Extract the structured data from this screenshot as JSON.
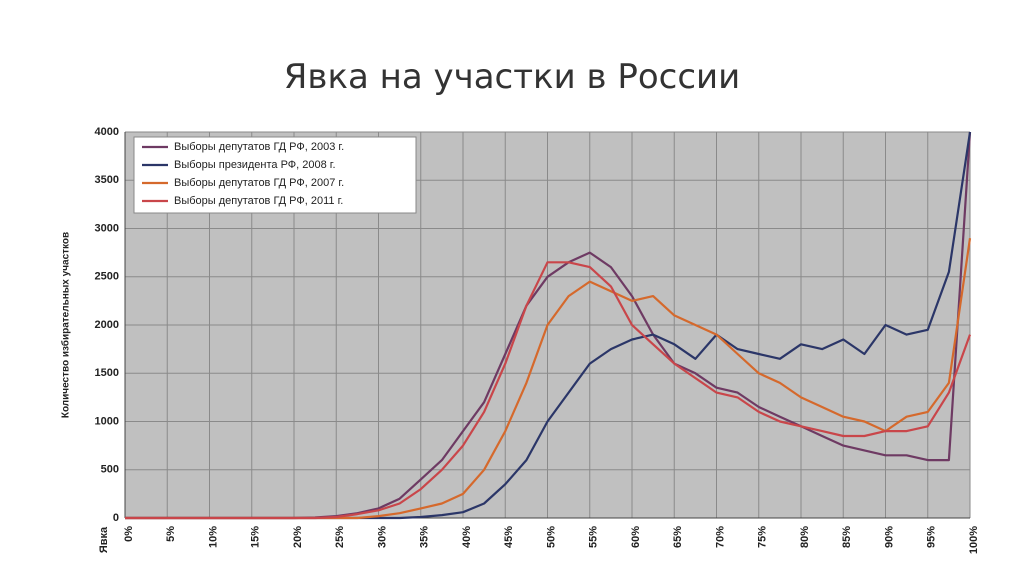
{
  "chart_data": {
    "type": "line",
    "title": "Явка на участки в России",
    "xlabel": "Явка",
    "ylabel": "Количество избирательных участков",
    "x": [
      0,
      2.5,
      5,
      7.5,
      10,
      12.5,
      15,
      17.5,
      20,
      22.5,
      25,
      27.5,
      30,
      32.5,
      35,
      37.5,
      40,
      42.5,
      45,
      47.5,
      50,
      52.5,
      55,
      57.5,
      60,
      62.5,
      65,
      67.5,
      70,
      72.5,
      75,
      77.5,
      80,
      82.5,
      85,
      87.5,
      90,
      92.5,
      95,
      97.5,
      100
    ],
    "series": [
      {
        "name": "Выборы депутатов ГД РФ, 2003 г.",
        "color": "#6e3a63",
        "values": [
          0,
          0,
          0,
          0,
          0,
          0,
          0,
          0,
          0,
          5,
          20,
          50,
          100,
          200,
          400,
          600,
          900,
          1200,
          1700,
          2200,
          2500,
          2650,
          2750,
          2600,
          2300,
          1900,
          1600,
          1500,
          1350,
          1300,
          1150,
          1050,
          950,
          850,
          750,
          700,
          650,
          650,
          600,
          600,
          4000
        ]
      },
      {
        "name": "Выборы президента РФ, 2008 г.",
        "color": "#2b3668",
        "values": [
          0,
          0,
          0,
          0,
          0,
          0,
          0,
          0,
          0,
          0,
          0,
          0,
          0,
          0,
          10,
          30,
          60,
          150,
          350,
          600,
          1000,
          1300,
          1600,
          1750,
          1850,
          1900,
          1800,
          1650,
          1900,
          1750,
          1700,
          1650,
          1800,
          1750,
          1850,
          1700,
          2000,
          1900,
          1950,
          2550,
          4000
        ]
      },
      {
        "name": "Выборы депутатов ГД РФ, 2007 г.",
        "color": "#d5692c",
        "values": [
          0,
          0,
          0,
          0,
          0,
          0,
          0,
          0,
          0,
          0,
          0,
          0,
          20,
          50,
          100,
          150,
          250,
          500,
          900,
          1400,
          2000,
          2300,
          2450,
          2350,
          2250,
          2300,
          2100,
          2000,
          1900,
          1700,
          1500,
          1400,
          1250,
          1150,
          1050,
          1000,
          900,
          1050,
          1100,
          1400,
          2900
        ]
      },
      {
        "name": "Выборы депутатов ГД РФ, 2011 г.",
        "color": "#c9464a",
        "values": [
          0,
          0,
          0,
          0,
          0,
          0,
          0,
          0,
          0,
          0,
          10,
          40,
          80,
          150,
          300,
          500,
          750,
          1100,
          1600,
          2200,
          2650,
          2650,
          2600,
          2400,
          2000,
          1800,
          1600,
          1450,
          1300,
          1250,
          1100,
          1000,
          950,
          900,
          850,
          850,
          900,
          900,
          950,
          1300,
          1900
        ]
      }
    ],
    "xlim": [
      0,
      100
    ],
    "xticks": [
      {
        "value": 0,
        "label": "0%"
      },
      {
        "value": 5,
        "label": "5%"
      },
      {
        "value": 10,
        "label": "10%"
      },
      {
        "value": 15,
        "label": "15%"
      },
      {
        "value": 20,
        "label": "20%"
      },
      {
        "value": 25,
        "label": "25%"
      },
      {
        "value": 30,
        "label": "30%"
      },
      {
        "value": 35,
        "label": "35%"
      },
      {
        "value": 40,
        "label": "40%"
      },
      {
        "value": 45,
        "label": "45%"
      },
      {
        "value": 50,
        "label": "50%"
      },
      {
        "value": 55,
        "label": "55%"
      },
      {
        "value": 60,
        "label": "60%"
      },
      {
        "value": 65,
        "label": "65%"
      },
      {
        "value": 70,
        "label": "70%"
      },
      {
        "value": 75,
        "label": "75%"
      },
      {
        "value": 80,
        "label": "80%"
      },
      {
        "value": 85,
        "label": "85%"
      },
      {
        "value": 90,
        "label": "90%"
      },
      {
        "value": 95,
        "label": "95%"
      },
      {
        "value": 100,
        "label": "100%"
      }
    ],
    "ylim": [
      0,
      4000
    ],
    "yticks": [
      0,
      500,
      1000,
      1500,
      2000,
      2500,
      3000,
      3500,
      4000
    ],
    "grid": true
  }
}
